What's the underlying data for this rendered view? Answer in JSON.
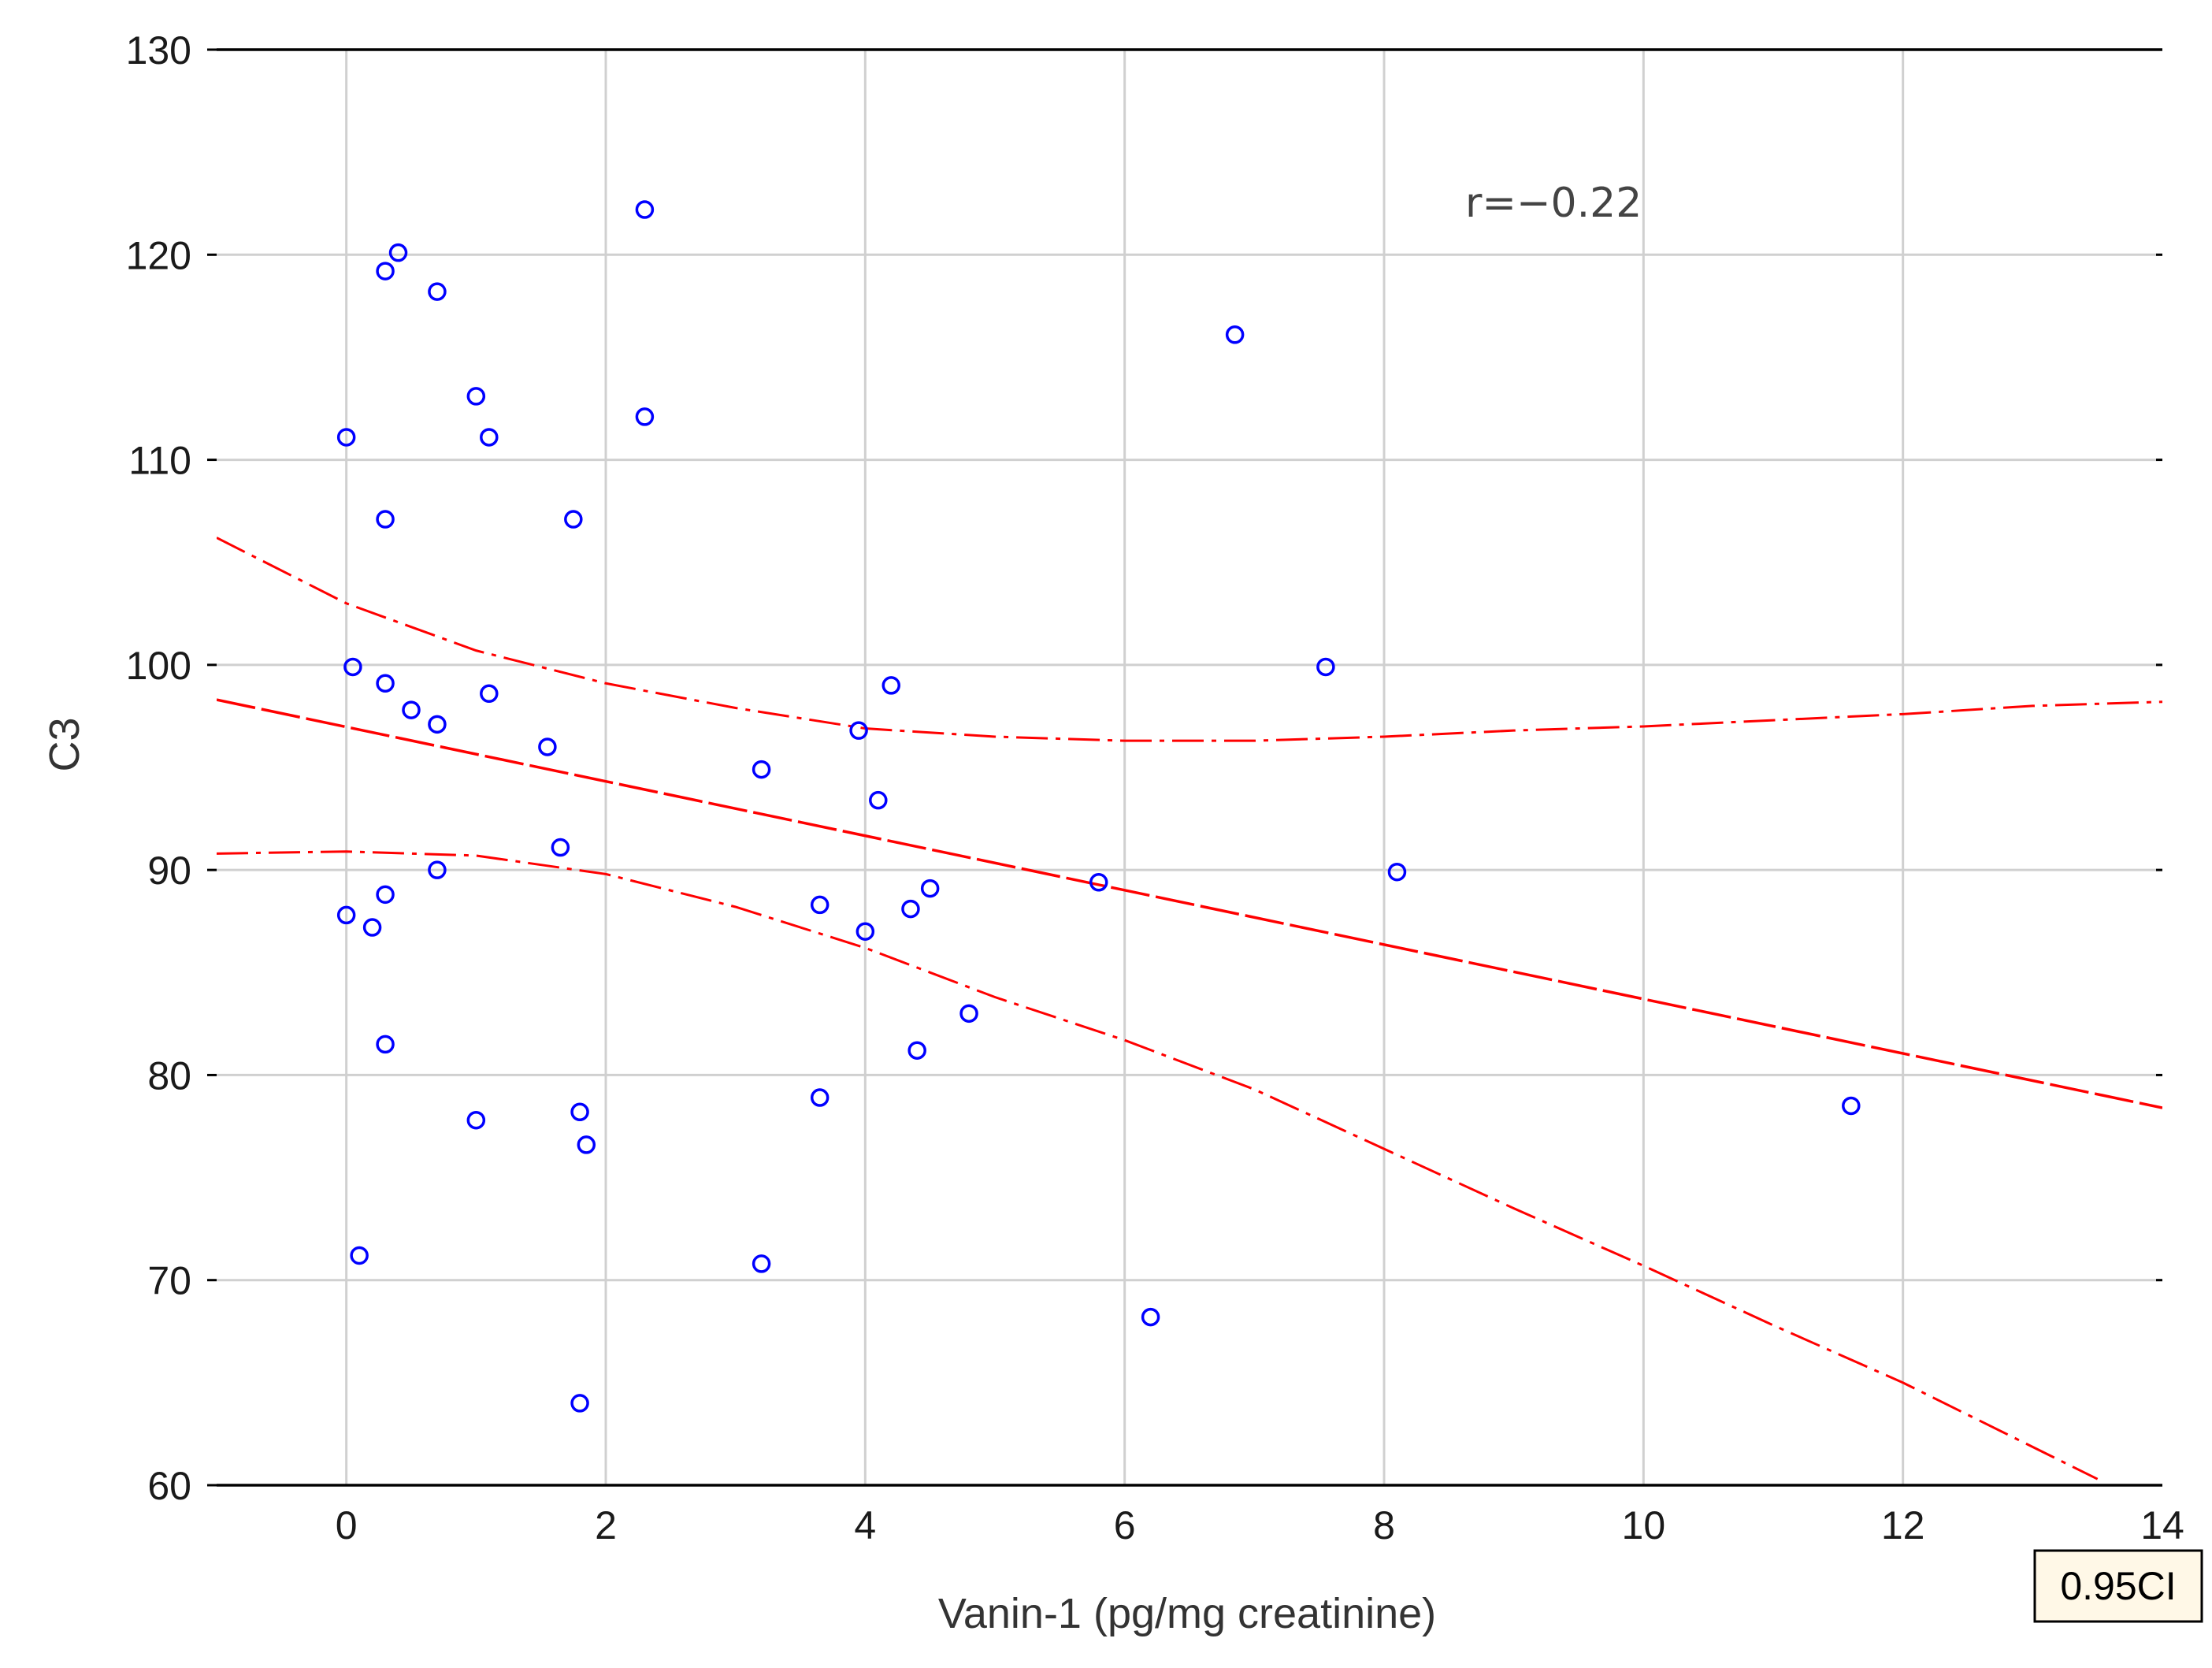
{
  "chart_data": {
    "type": "scatter",
    "title": "",
    "xlabel": "Vanin-1 (pg/mg creatinine)",
    "ylabel": "C3",
    "xlim": [
      -1,
      14
    ],
    "ylim": [
      60,
      130
    ],
    "xticks": [
      0,
      2,
      4,
      6,
      8,
      10,
      12,
      14
    ],
    "yticks": [
      60,
      70,
      80,
      90,
      100,
      110,
      120,
      130
    ],
    "grid": true,
    "annotation": "r=−0.22",
    "legend": {
      "label": "0.95CI",
      "position": "bottom-right"
    },
    "points": [
      {
        "x": 0.0,
        "y": 111.1
      },
      {
        "x": 0.05,
        "y": 99.9
      },
      {
        "x": 0.0,
        "y": 87.8
      },
      {
        "x": 0.1,
        "y": 71.2
      },
      {
        "x": 0.2,
        "y": 87.2
      },
      {
        "x": 0.3,
        "y": 119.2
      },
      {
        "x": 0.4,
        "y": 120.1
      },
      {
        "x": 0.3,
        "y": 107.1
      },
      {
        "x": 0.3,
        "y": 99.1
      },
      {
        "x": 0.3,
        "y": 88.8
      },
      {
        "x": 0.3,
        "y": 81.5
      },
      {
        "x": 0.5,
        "y": 97.8
      },
      {
        "x": 0.7,
        "y": 118.2
      },
      {
        "x": 0.7,
        "y": 97.1
      },
      {
        "x": 0.7,
        "y": 90.0
      },
      {
        "x": 1.0,
        "y": 113.1
      },
      {
        "x": 1.1,
        "y": 111.1
      },
      {
        "x": 1.1,
        "y": 98.6
      },
      {
        "x": 1.0,
        "y": 77.8
      },
      {
        "x": 1.55,
        "y": 96.0
      },
      {
        "x": 1.65,
        "y": 91.1
      },
      {
        "x": 1.75,
        "y": 107.1
      },
      {
        "x": 1.8,
        "y": 78.2
      },
      {
        "x": 1.85,
        "y": 76.6
      },
      {
        "x": 1.8,
        "y": 64.0
      },
      {
        "x": 2.3,
        "y": 122.2
      },
      {
        "x": 2.3,
        "y": 112.1
      },
      {
        "x": 3.2,
        "y": 94.9
      },
      {
        "x": 3.2,
        "y": 70.8
      },
      {
        "x": 3.65,
        "y": 88.3
      },
      {
        "x": 3.65,
        "y": 78.9
      },
      {
        "x": 3.95,
        "y": 96.8
      },
      {
        "x": 4.0,
        "y": 87.0
      },
      {
        "x": 4.1,
        "y": 93.4
      },
      {
        "x": 4.2,
        "y": 99.0
      },
      {
        "x": 4.35,
        "y": 88.1
      },
      {
        "x": 4.4,
        "y": 81.2
      },
      {
        "x": 4.5,
        "y": 89.1
      },
      {
        "x": 4.8,
        "y": 83.0
      },
      {
        "x": 5.8,
        "y": 89.4
      },
      {
        "x": 6.2,
        "y": 68.2
      },
      {
        "x": 6.85,
        "y": 116.1
      },
      {
        "x": 7.55,
        "y": 99.9
      },
      {
        "x": 8.1,
        "y": 89.9
      },
      {
        "x": 11.6,
        "y": 78.5
      }
    ],
    "fit_line": {
      "x": [
        -1,
        14
      ],
      "y": [
        98.3,
        78.4
      ]
    },
    "ci_upper": {
      "x": [
        -1,
        0,
        1,
        2,
        3,
        4,
        5,
        6,
        7,
        8,
        9,
        10,
        11,
        12,
        13,
        14
      ],
      "y": [
        106.2,
        103.0,
        100.7,
        99.1,
        97.9,
        96.9,
        96.5,
        96.3,
        96.3,
        96.5,
        96.8,
        97.0,
        97.3,
        97.6,
        98.0,
        98.2
      ]
    },
    "ci_lower": {
      "x": [
        -1,
        0,
        1,
        2,
        3,
        4,
        5,
        6,
        7,
        8,
        9,
        10,
        11,
        12,
        13.5
      ],
      "y": [
        90.8,
        90.9,
        90.7,
        89.8,
        88.2,
        86.2,
        83.8,
        81.7,
        79.3,
        76.4,
        73.5,
        70.7,
        67.8,
        65.0,
        60.3
      ]
    },
    "colors": {
      "points": "#0000ff",
      "fit": "#ff0000",
      "ci": "#ff0000",
      "grid": "#d0d0d0",
      "axis": "#000000",
      "legend_bg": "#fff8e7"
    }
  }
}
